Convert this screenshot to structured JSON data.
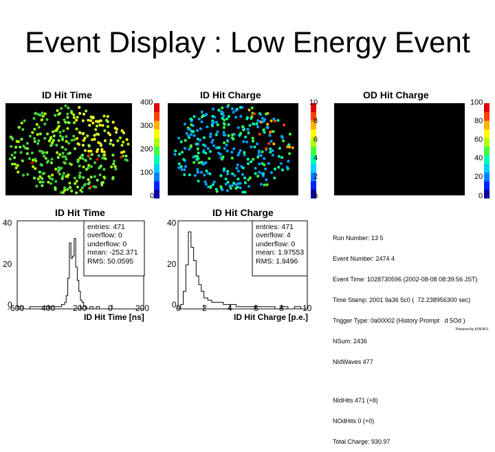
{
  "slide_title": "Event Display : Low Energy Event",
  "colorbar_colors": [
    "#0000a0",
    "#0020ff",
    "#0080ff",
    "#00d0ff",
    "#00ffb0",
    "#40ff40",
    "#b0ff00",
    "#ffff00",
    "#ffb000",
    "#ff4000",
    "#e00000"
  ],
  "chart_data": [
    {
      "type": "scatter",
      "title": "ID Hit Time",
      "colorbar_ticks": [
        "400",
        "300",
        "200",
        "100",
        "0"
      ],
      "description_colors": "hits mostly green, dense yellow cluster upper right"
    },
    {
      "type": "scatter",
      "title": "ID Hit Charge",
      "colorbar_ticks": [
        "10",
        "8",
        "6",
        "4",
        "2",
        "0"
      ]
    },
    {
      "type": "scatter",
      "title": "OD Hit Charge",
      "colorbar_ticks": [
        "100",
        "80",
        "60",
        "40",
        "20",
        "0"
      ]
    },
    {
      "type": "bar",
      "title": "ID Hit Time",
      "xlabel": "ID Hit Time [ns]",
      "xticks": [
        "-600",
        "-400",
        "-200",
        "0",
        "200"
      ],
      "yticks": [
        "40",
        "20",
        "0"
      ],
      "xlim": [
        -600,
        200
      ],
      "ylim": [
        0,
        40
      ],
      "stats": [
        "entries: 471",
        "overflow: 0",
        "underflow: 0",
        "mean: -252.371",
        "RMS: 50.0595"
      ],
      "bins_x": [
        -600,
        -560,
        -520,
        -480,
        -440,
        -400,
        -370,
        -340,
        -320,
        -300,
        -290,
        -280,
        -270,
        -260,
        -250,
        -240,
        -230,
        -220,
        -210,
        -200,
        -190,
        -180,
        -170,
        -160,
        -140,
        -120,
        -100,
        -80,
        -60,
        -40
      ],
      "bins_y": [
        1,
        0,
        1,
        1,
        1,
        1,
        1,
        1,
        2,
        3,
        6,
        14,
        30,
        23,
        24,
        32,
        19,
        13,
        8,
        4,
        3,
        1,
        1,
        0,
        1,
        0,
        1,
        0,
        0,
        0
      ]
    },
    {
      "type": "bar",
      "title": "ID Hit Charge",
      "xlabel": "ID Hit Charge [p.e.]",
      "xticks": [
        "0",
        "2",
        "4",
        "6",
        "8",
        "10"
      ],
      "yticks": [
        "40",
        "20",
        "0"
      ],
      "xlim": [
        0,
        10
      ],
      "ylim": [
        0,
        40
      ],
      "stats": [
        "entries: 471",
        "overflow: 4",
        "underflow: 0",
        "mean: 1.97553",
        "RMS: 1.9496"
      ],
      "bins_x": [
        0.2,
        0.4,
        0.6,
        0.8,
        1.0,
        1.2,
        1.4,
        1.6,
        1.8,
        2.0,
        2.3,
        2.6,
        3.0,
        3.5,
        4.0,
        4.5,
        5.0,
        5.5,
        6.0,
        6.5,
        7.0,
        7.5,
        8.0,
        8.5,
        9.0,
        9.5
      ],
      "bins_y": [
        2,
        8,
        20,
        35,
        28,
        22,
        15,
        11,
        8,
        5,
        4,
        3,
        3,
        2,
        2,
        1,
        1,
        1,
        1,
        1,
        1,
        0,
        1,
        0,
        1,
        0
      ]
    }
  ],
  "info_lines": [
    "Run Number: 13 5",
    "Event Number: 2474 4",
    "Event Time: 1028730596 (2002-08-08 08:39:56 JST)",
    "Time Stamp: 2001 9a36 5c0 (  72.238956300 sec)",
    "Trigger Type: 0a00002 (History Prompt   d 5Od )",
    "NSum: 2436",
    "NIdWaves 477",
    "",
    "NIdHits 471 (+8)",
    "NOdHits 0 (+0)",
    "Total Charge: 930.97"
  ],
  "powered_by": "Powered by KINOKO"
}
